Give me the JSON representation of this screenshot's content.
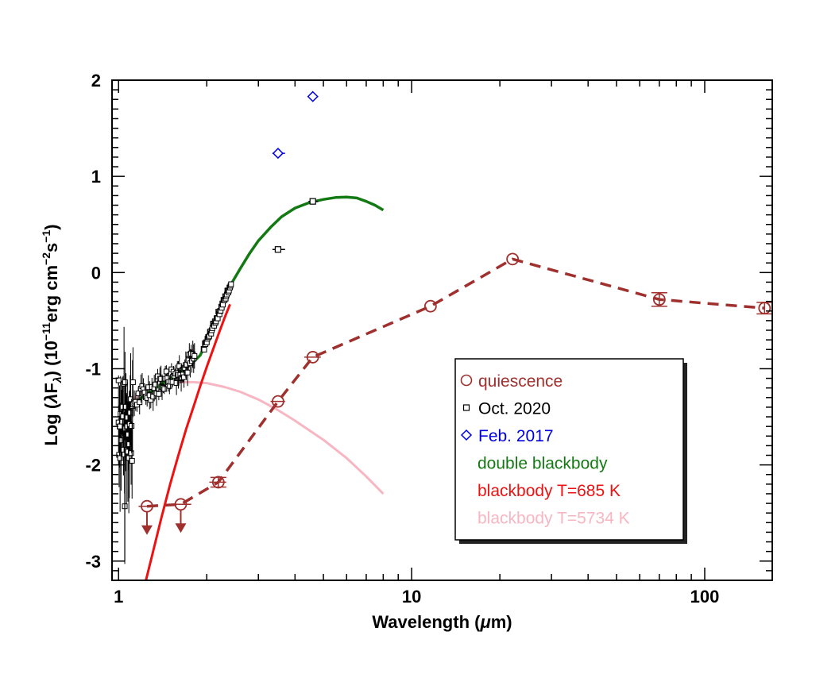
{
  "chart_data": {
    "type": "scatter",
    "title": "",
    "xlabel": "Wavelength (μm)",
    "ylabel": "Log (λF_λ) (10^-11 erg cm^-2 s^-1)",
    "xlabel_parts": {
      "prefix": "Wavelength (",
      "mu": "μ",
      "suffix": "m)"
    },
    "ylabel_parts": {
      "log": "Log (",
      "lambda": "λ",
      "F": "F",
      "sub": "λ",
      "mid": ") (10",
      "exp1": "−11",
      "erg": "erg cm",
      "exp2": "−2",
      "s": "s",
      "exp3": "−1",
      "end": ")"
    },
    "xscale": "log",
    "xlim": [
      0.95,
      170
    ],
    "ylim": [
      -3.2,
      2.0
    ],
    "x_ticks": [
      {
        "value": 1,
        "label": "1"
      },
      {
        "value": 10,
        "label": "10"
      },
      {
        "value": 100,
        "label": "100"
      }
    ],
    "y_ticks": [
      {
        "value": 2,
        "label": "2"
      },
      {
        "value": 1,
        "label": "1"
      },
      {
        "value": 0,
        "label": "0"
      },
      {
        "value": -1,
        "label": "-1"
      },
      {
        "value": -2,
        "label": "-2"
      },
      {
        "value": -3,
        "label": "-3"
      }
    ],
    "legend_position": "lower-right",
    "colors": {
      "quiescence": "#a0302e",
      "oct2020": "#000000",
      "feb2017": "#0000dd",
      "double_bb": "#137a13",
      "bb685": "#ee1111",
      "bb5734": "#f7b6c2"
    },
    "series": [
      {
        "name": "quiescence",
        "legend_label": "quiescence",
        "marker": "circle",
        "line": "dashed",
        "points": [
          {
            "x": 1.25,
            "y": -2.43,
            "upper_limit": true,
            "xerr": [
              1.17,
              1.33
            ]
          },
          {
            "x": 1.63,
            "y": -2.41,
            "upper_limit": true,
            "xerr": [
              1.5,
              1.77
            ]
          },
          {
            "x": 2.19,
            "y": -2.18,
            "yerr": 0.05,
            "xerr": [
              2.04,
              2.33
            ]
          },
          {
            "x": 3.5,
            "y": -1.34,
            "xerr": [
              3.3,
              3.7
            ]
          },
          {
            "x": 4.6,
            "y": -0.88,
            "xerr": [
              4.3,
              4.9
            ]
          },
          {
            "x": 11.6,
            "y": -0.35
          },
          {
            "x": 22.1,
            "y": 0.14
          },
          {
            "x": 70,
            "y": -0.28,
            "yerr": 0.07
          },
          {
            "x": 160,
            "y": -0.37,
            "yerr": 0.06
          }
        ]
      },
      {
        "name": "Oct. 2020",
        "legend_label": "Oct. 2020",
        "marker": "square",
        "photometry": [
          {
            "x": 3.5,
            "y": 0.24,
            "xerr": [
              3.35,
              3.7
            ]
          },
          {
            "x": 4.6,
            "y": 0.74,
            "xerr": [
              4.45,
              4.8
            ]
          }
        ]
      },
      {
        "name": "Feb. 2017",
        "legend_label": "Feb. 2017",
        "marker": "diamond",
        "points": [
          {
            "x": 3.5,
            "y": 1.24,
            "xerr": [
              3.35,
              3.7
            ]
          },
          {
            "x": 4.6,
            "y": 1.83,
            "xerr": [
              4.45,
              4.8
            ]
          }
        ]
      },
      {
        "name": "double blackbody",
        "legend_label": "double blackbody",
        "line": "solid",
        "curve": [
          [
            1.0,
            -1.6
          ],
          [
            1.05,
            -1.5
          ],
          [
            1.1,
            -1.4
          ],
          [
            1.2,
            -1.3
          ],
          [
            1.3,
            -1.23
          ],
          [
            1.4,
            -1.16
          ],
          [
            1.5,
            -1.1
          ],
          [
            1.6,
            -1.05
          ],
          [
            1.7,
            -0.99
          ],
          [
            1.8,
            -0.93
          ],
          [
            1.9,
            -0.86
          ],
          [
            2.0,
            -0.72
          ],
          [
            2.1,
            -0.56
          ],
          [
            2.2,
            -0.42
          ],
          [
            2.3,
            -0.28
          ],
          [
            2.4,
            -0.14
          ],
          [
            2.6,
            0.04
          ],
          [
            2.8,
            0.2
          ],
          [
            3.0,
            0.33
          ],
          [
            3.3,
            0.47
          ],
          [
            3.6,
            0.58
          ],
          [
            4.0,
            0.67
          ],
          [
            4.5,
            0.73
          ],
          [
            5.0,
            0.76
          ],
          [
            5.5,
            0.78
          ],
          [
            6.0,
            0.785
          ],
          [
            6.5,
            0.775
          ],
          [
            7.0,
            0.74
          ],
          [
            7.5,
            0.7
          ],
          [
            8.0,
            0.65
          ]
        ]
      },
      {
        "name": "blackbody T=685 K",
        "legend_label": "blackbody T=685 K",
        "line": "solid",
        "curve": [
          [
            1.24,
            -3.2
          ],
          [
            1.3,
            -2.95
          ],
          [
            1.4,
            -2.55
          ],
          [
            1.5,
            -2.2
          ],
          [
            1.6,
            -1.9
          ],
          [
            1.7,
            -1.63
          ],
          [
            1.8,
            -1.4
          ],
          [
            1.9,
            -1.18
          ],
          [
            2.0,
            -0.98
          ],
          [
            2.1,
            -0.8
          ],
          [
            2.2,
            -0.63
          ],
          [
            2.3,
            -0.47
          ],
          [
            2.4,
            -0.33
          ]
        ]
      },
      {
        "name": "blackbody T=5734 K",
        "legend_label": "blackbody T=5734 K",
        "line": "solid",
        "curve": [
          [
            1.0,
            -1.48
          ],
          [
            1.1,
            -1.34
          ],
          [
            1.2,
            -1.25
          ],
          [
            1.3,
            -1.19
          ],
          [
            1.4,
            -1.16
          ],
          [
            1.6,
            -1.14
          ],
          [
            1.8,
            -1.14
          ],
          [
            2.0,
            -1.15
          ],
          [
            2.3,
            -1.19
          ],
          [
            2.6,
            -1.24
          ],
          [
            3.0,
            -1.32
          ],
          [
            3.5,
            -1.43
          ],
          [
            4.0,
            -1.54
          ],
          [
            5.0,
            -1.74
          ],
          [
            6.0,
            -1.93
          ],
          [
            7.0,
            -2.12
          ],
          [
            8.0,
            -2.3
          ]
        ]
      }
    ]
  }
}
